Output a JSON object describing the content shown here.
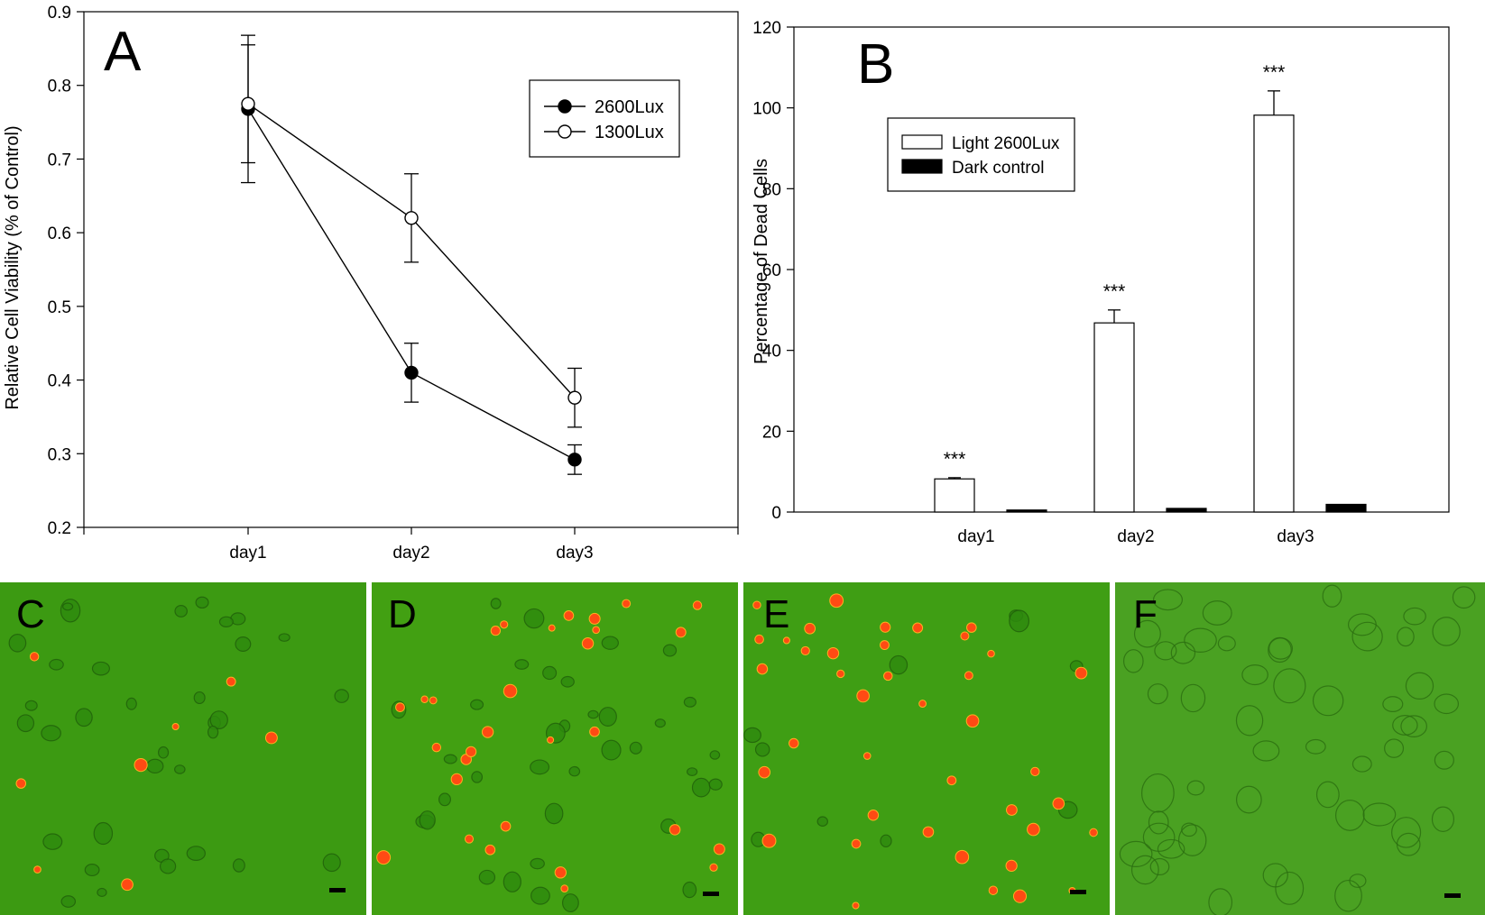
{
  "colors": {
    "axis": "#000000",
    "panel_bg": "#ffffff",
    "micro_bg_c": "#3c9a12",
    "micro_bg_d": "#42a012",
    "micro_bg_e": "#3f9e14",
    "micro_bg_f": "#4aa122",
    "dead_cell": "#ff4a14",
    "live_cell": "#2e8a0e"
  },
  "chart_data": [
    {
      "panel": "A",
      "type": "line",
      "title": "",
      "xlabel": "",
      "ylabel": "Relative Cell Viability (% of Control)",
      "categories": [
        "day1",
        "day2",
        "day3"
      ],
      "ylim": [
        0.2,
        0.9
      ],
      "yticks": [
        "0.2",
        "0.3",
        "0.4",
        "0.5",
        "0.6",
        "0.7",
        "0.8",
        "0.9"
      ],
      "legend_position": "top-right",
      "series": [
        {
          "name": "2600Lux",
          "marker": "filled-circle",
          "values": [
            0.768,
            0.41,
            0.292
          ],
          "errors": [
            0.1,
            0.04,
            0.02
          ]
        },
        {
          "name": "1300Lux",
          "marker": "open-circle",
          "values": [
            0.775,
            0.62,
            0.376
          ],
          "errors": [
            0.08,
            0.06,
            0.04
          ]
        }
      ]
    },
    {
      "panel": "B",
      "type": "bar",
      "title": "",
      "xlabel": "",
      "ylabel": "Percentage of Dead Cells",
      "categories": [
        "day1",
        "day2",
        "day3"
      ],
      "ylim": [
        0,
        120
      ],
      "yticks": [
        "0",
        "20",
        "40",
        "60",
        "80",
        "100",
        "120"
      ],
      "legend_position": "top-left",
      "annotations": [
        "***",
        "***",
        "***"
      ],
      "series": [
        {
          "name": "Light 2600Lux",
          "fill": "white",
          "values": [
            8.2,
            46.8,
            98.2
          ],
          "errors": [
            0.3,
            3.2,
            6.0
          ]
        },
        {
          "name": "Dark control",
          "fill": "black",
          "values": [
            0.5,
            0.9,
            1.9
          ],
          "errors": [
            0,
            0,
            0
          ]
        }
      ]
    }
  ],
  "micrographs": [
    {
      "label": "C"
    },
    {
      "label": "D"
    },
    {
      "label": "E"
    },
    {
      "label": "F"
    }
  ]
}
